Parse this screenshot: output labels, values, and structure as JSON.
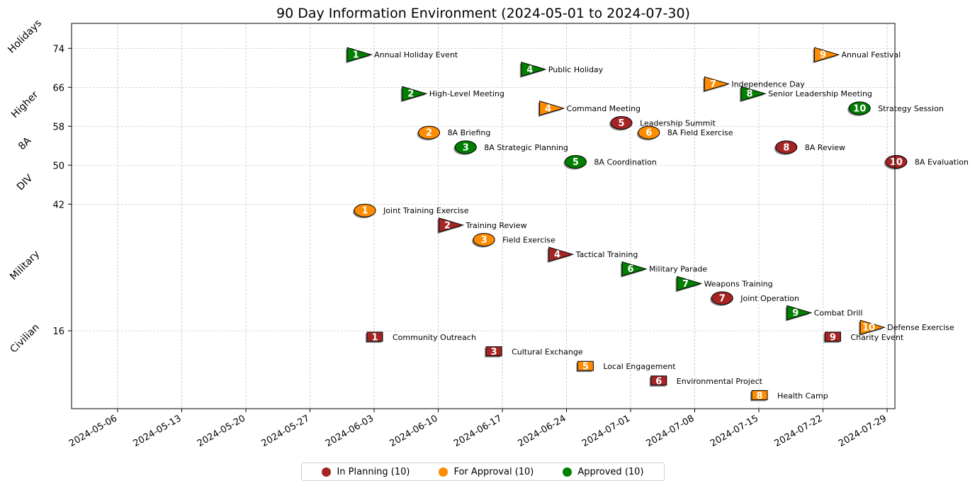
{
  "chart_data": {
    "type": "scatter",
    "title": "90 Day Information Environment (2024-05-01 to 2024-07-30)",
    "xlim": [
      "2024-05-01",
      "2024-07-30"
    ],
    "ylim": [
      6,
      84
    ],
    "x_ticks": [
      "2024-05-06",
      "2024-05-13",
      "2024-05-20",
      "2024-05-27",
      "2024-06-03",
      "2024-06-10",
      "2024-06-17",
      "2024-06-24",
      "2024-07-01",
      "2024-07-08",
      "2024-07-15",
      "2024-07-22",
      "2024-07-29"
    ],
    "y_ticks": [
      16,
      42,
      50,
      58,
      66,
      74
    ],
    "grid": true,
    "legend_position": "bottom-center",
    "categories": [
      {
        "label": "Holidays",
        "y": 76
      },
      {
        "label": "Higher",
        "y": 62
      },
      {
        "label": "8A",
        "y": 54
      },
      {
        "label": "DIV",
        "y": 46
      },
      {
        "label": "Military",
        "y": 29
      },
      {
        "label": "Civilian",
        "y": 14
      }
    ],
    "statuses": [
      {
        "key": "planning",
        "label": "In Planning (10)",
        "color": "#a52424"
      },
      {
        "key": "approval",
        "label": "For Approval (10)",
        "color": "#ff8c00"
      },
      {
        "key": "approved",
        "label": "Approved (10)",
        "color": "#007f00"
      }
    ],
    "events": [
      {
        "num": "1",
        "label": "Annual Holiday Event",
        "date": "2024-06-01",
        "y": 72.7,
        "shape": "flag",
        "status": "approved"
      },
      {
        "num": "4",
        "label": "Public Holiday",
        "date": "2024-06-20",
        "y": 69.7,
        "shape": "flag",
        "status": "approved"
      },
      {
        "num": "9",
        "label": "Annual Festival",
        "date": "2024-07-22",
        "y": 72.7,
        "shape": "flag",
        "status": "approval"
      },
      {
        "num": "2",
        "label": "High-Level Meeting",
        "date": "2024-06-07",
        "y": 64.7,
        "shape": "flag",
        "status": "approved"
      },
      {
        "num": "4",
        "label": "Command Meeting",
        "date": "2024-06-22",
        "y": 61.7,
        "shape": "flag",
        "status": "approval"
      },
      {
        "num": "7",
        "label": "Independence Day",
        "date": "2024-07-10",
        "y": 66.7,
        "shape": "flag",
        "status": "approval"
      },
      {
        "num": "8",
        "label": "Senior Leadership Meeting",
        "date": "2024-07-14",
        "y": 64.7,
        "shape": "flag",
        "status": "approved"
      },
      {
        "num": "5",
        "label": "Leadership Summit",
        "date": "2024-06-30",
        "y": 58.7,
        "shape": "circle",
        "status": "planning"
      },
      {
        "num": "10",
        "label": "Strategy Session",
        "date": "2024-07-26",
        "y": 61.7,
        "shape": "circle",
        "status": "approved"
      },
      {
        "num": "2",
        "label": "8A Briefing",
        "date": "2024-06-09",
        "y": 56.7,
        "shape": "circle",
        "status": "approval"
      },
      {
        "num": "6",
        "label": "8A Field Exercise",
        "date": "2024-07-03",
        "y": 56.7,
        "shape": "circle",
        "status": "approval"
      },
      {
        "num": "3",
        "label": "8A Strategic Planning",
        "date": "2024-06-13",
        "y": 53.7,
        "shape": "circle",
        "status": "approved"
      },
      {
        "num": "8",
        "label": "8A Review",
        "date": "2024-07-18",
        "y": 53.7,
        "shape": "circle",
        "status": "planning"
      },
      {
        "num": "5",
        "label": "8A Coordination",
        "date": "2024-06-25",
        "y": 50.7,
        "shape": "circle",
        "status": "approved"
      },
      {
        "num": "10",
        "label": "8A Evaluation",
        "date": "2024-07-30",
        "y": 50.7,
        "shape": "circle",
        "status": "planning"
      },
      {
        "num": "1",
        "label": "Joint Training Exercise",
        "date": "2024-06-02",
        "y": 40.7,
        "shape": "circle",
        "status": "approval"
      },
      {
        "num": "2",
        "label": "Training Review",
        "date": "2024-06-11",
        "y": 37.7,
        "shape": "flag",
        "status": "planning"
      },
      {
        "num": "3",
        "label": "Field Exercise",
        "date": "2024-06-15",
        "y": 34.7,
        "shape": "circle",
        "status": "approval"
      },
      {
        "num": "4",
        "label": "Tactical Training",
        "date": "2024-06-23",
        "y": 31.7,
        "shape": "flag",
        "status": "planning"
      },
      {
        "num": "6",
        "label": "Military Parade",
        "date": "2024-07-01",
        "y": 28.7,
        "shape": "flag",
        "status": "approved"
      },
      {
        "num": "7",
        "label": "Weapons Training",
        "date": "2024-07-07",
        "y": 25.7,
        "shape": "flag",
        "status": "approved"
      },
      {
        "num": "7",
        "label": "Joint Operation",
        "date": "2024-07-11",
        "y": 22.7,
        "shape": "circle",
        "status": "planning"
      },
      {
        "num": "9",
        "label": "Combat Drill",
        "date": "2024-07-19",
        "y": 19.7,
        "shape": "flag",
        "status": "approved"
      },
      {
        "num": "10",
        "label": "Defense Exercise",
        "date": "2024-07-27",
        "y": 16.7,
        "shape": "flag",
        "status": "approval"
      },
      {
        "num": "1",
        "label": "Community Outreach",
        "date": "2024-06-03",
        "y": 14.7,
        "shape": "square",
        "status": "planning"
      },
      {
        "num": "9",
        "label": "Charity Event",
        "date": "2024-07-23",
        "y": 14.7,
        "shape": "square",
        "status": "planning"
      },
      {
        "num": "3",
        "label": "Cultural Exchange",
        "date": "2024-06-16",
        "y": 11.7,
        "shape": "square",
        "status": "planning"
      },
      {
        "num": "5",
        "label": "Local Engagement",
        "date": "2024-06-26",
        "y": 8.7,
        "shape": "square",
        "status": "approval"
      },
      {
        "num": "6",
        "label": "Environmental Project",
        "date": "2024-07-04",
        "y": 5.7,
        "shape": "square",
        "status": "planning"
      },
      {
        "num": "8",
        "label": "Health Camp",
        "date": "2024-07-15",
        "y": 2.7,
        "shape": "square",
        "status": "approval"
      }
    ]
  }
}
